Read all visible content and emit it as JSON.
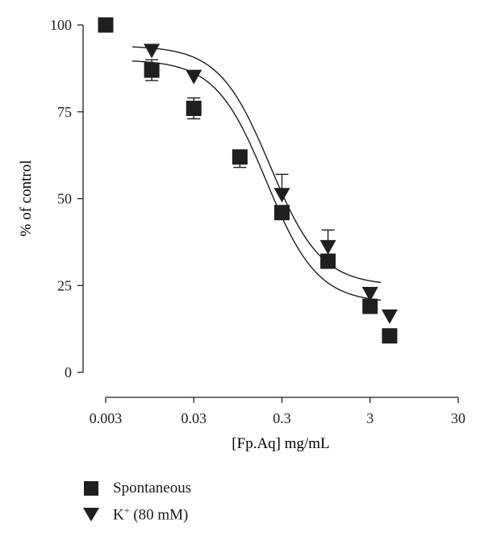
{
  "chart_data": {
    "type": "scatter",
    "xlabel": "[Fp.Aq] mg/mL",
    "ylabel": "% of control",
    "xscale": "log",
    "xlim": [
      0.003,
      30
    ],
    "ylim": [
      0,
      100
    ],
    "x_ticks": [
      0.003,
      0.03,
      0.3,
      3,
      30
    ],
    "x_tick_labels": [
      "0.003",
      "0.03",
      "0.3",
      "3",
      "30"
    ],
    "y_ticks": [
      0,
      25,
      50,
      75,
      100
    ],
    "y_tick_labels": [
      "0",
      "25",
      "50",
      "75",
      "100"
    ],
    "legend_placement": "bottom-left",
    "series": [
      {
        "name": "Spontaneous",
        "marker": "square",
        "x": [
          0.003,
          0.01,
          0.03,
          0.1,
          0.3,
          1,
          3,
          5
        ],
        "y": [
          100,
          87,
          76,
          62,
          46,
          32,
          19,
          10.5
        ],
        "err_up": [
          0,
          3,
          3,
          0,
          0,
          0,
          0,
          0
        ],
        "err_down": [
          0,
          3,
          3,
          3,
          0,
          0,
          0,
          0
        ],
        "fit": {
          "top": 90,
          "bottom": 20,
          "ic50": 0.2,
          "hill": 1.5
        }
      },
      {
        "name_main": "K",
        "name_sup": "+",
        "name_rest": " (80 mM)",
        "marker": "triangle-down",
        "x": [
          0.01,
          0.03,
          0.3,
          1,
          3,
          5
        ],
        "y": [
          92.5,
          85,
          51,
          36,
          22.5,
          16
        ],
        "err_up": [
          0,
          0,
          6,
          5,
          0,
          0
        ],
        "err_down": [
          0,
          0,
          0,
          0,
          0,
          0
        ],
        "fit": {
          "top": 94,
          "bottom": 25,
          "ic50": 0.22,
          "hill": 1.5
        }
      }
    ]
  }
}
